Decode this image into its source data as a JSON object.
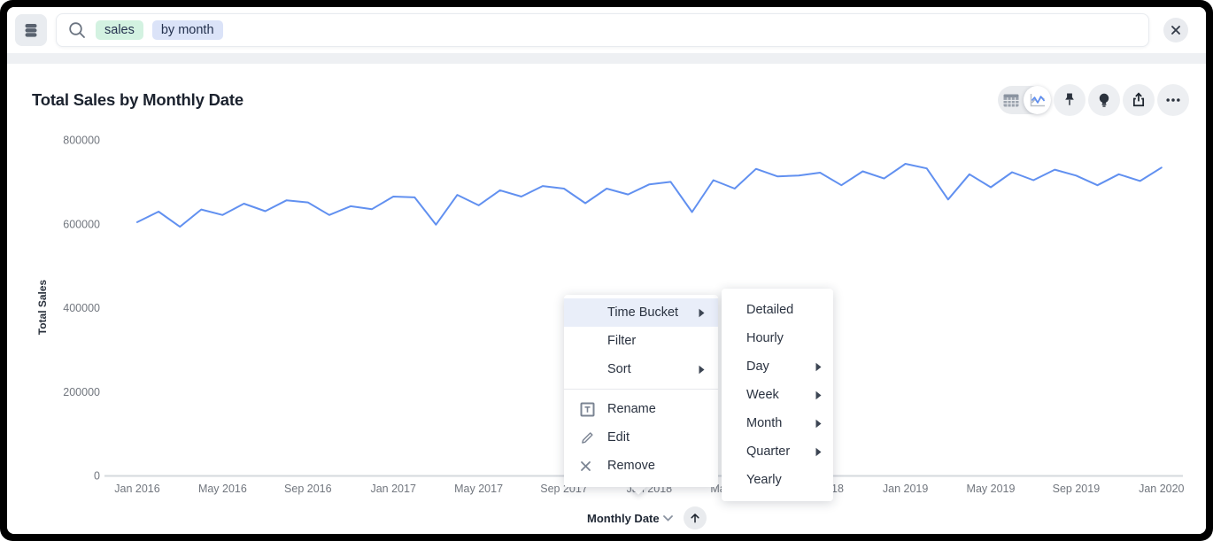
{
  "topbar": {
    "tokens": [
      {
        "text": "sales",
        "bg": "#d3f2e1"
      },
      {
        "text": "by month",
        "bg": "#dbe3f8"
      }
    ],
    "search_value": ""
  },
  "header": {
    "title": "Total Sales by Monthly Date"
  },
  "toolbar": {
    "view_toggle": {
      "options": [
        "table",
        "chart"
      ],
      "selected": "chart"
    },
    "actions": [
      "pin",
      "insights",
      "share",
      "more"
    ]
  },
  "context_menu": {
    "items": [
      {
        "label": "Time Bucket",
        "submenu": true,
        "highlighted": true
      },
      {
        "label": "Filter"
      },
      {
        "label": "Sort",
        "submenu": true
      },
      {
        "divider": true
      },
      {
        "label": "Rename",
        "icon": "rename"
      },
      {
        "label": "Edit",
        "icon": "edit"
      },
      {
        "label": "Remove",
        "icon": "remove"
      }
    ]
  },
  "time_bucket_submenu": {
    "items": [
      {
        "label": "Detailed"
      },
      {
        "label": "Hourly"
      },
      {
        "label": "Day",
        "submenu": true
      },
      {
        "label": "Week",
        "submenu": true
      },
      {
        "label": "Month",
        "submenu": true
      },
      {
        "label": "Quarter",
        "submenu": true
      },
      {
        "label": "Yearly"
      }
    ]
  },
  "x_axis_control": {
    "label": "Monthly Date"
  },
  "chart_data": {
    "type": "line",
    "title": "Total Sales by Monthly Date",
    "xlabel": "Monthly Date",
    "ylabel": "Total Sales",
    "ylim": [
      0,
      800000
    ],
    "y_ticks": [
      0,
      200000,
      400000,
      600000,
      800000
    ],
    "x_start": "Jan 2016",
    "x_end": "Jan 2020",
    "x_tick_labels": [
      "Jan 2016",
      "May 2016",
      "Sep 2016",
      "Jan 2017",
      "May 2017",
      "Sep 2017",
      "Jan 2018",
      "May 2018",
      "Sep 2018",
      "Jan 2019",
      "May 2019",
      "Sep 2019",
      "Jan 2020"
    ],
    "x_tick_indices": [
      0,
      4,
      8,
      12,
      16,
      20,
      24,
      28,
      32,
      36,
      40,
      44,
      48
    ],
    "grid": false,
    "legend": false,
    "line_color": "#6190f0",
    "series": [
      {
        "name": "Total Sales",
        "values": [
          604000,
          629000,
          593000,
          634000,
          621000,
          648000,
          630000,
          656000,
          651000,
          621000,
          642000,
          635000,
          665000,
          663000,
          598000,
          669000,
          644000,
          680000,
          665000,
          690000,
          684000,
          649000,
          684000,
          670000,
          694000,
          700000,
          628000,
          704000,
          684000,
          731000,
          713000,
          715000,
          722000,
          692000,
          725000,
          708000,
          743000,
          732000,
          658000,
          718000,
          687000,
          723000,
          704000,
          729000,
          715000,
          692000,
          718000,
          702000,
          734000
        ]
      }
    ]
  }
}
